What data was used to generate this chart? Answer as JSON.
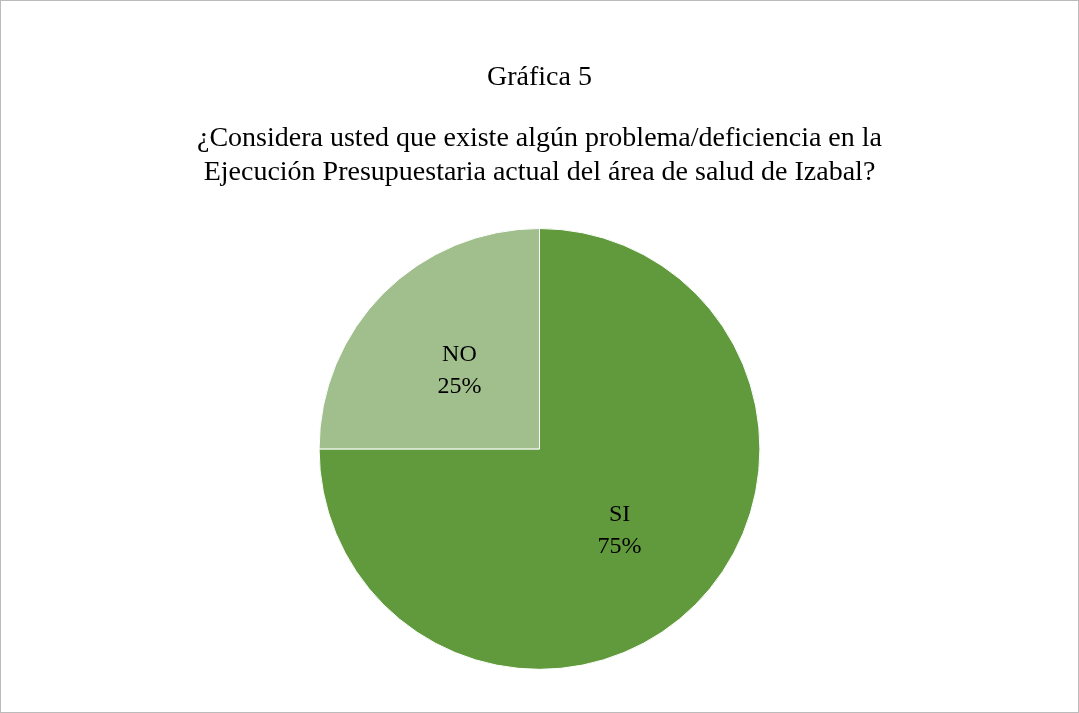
{
  "chart_data": {
    "type": "pie",
    "title": "Gráfica 5",
    "subtitle": "¿Considera usted que existe algún problema/deficiencia en la\nEjecución Presupuestaria actual del área de salud de Izabal?",
    "categories": [
      "SI",
      "NO"
    ],
    "values": [
      75,
      25
    ],
    "colors": [
      "#619a3c",
      "#a0bf8c"
    ],
    "value_labels": [
      "75%",
      "25%"
    ],
    "legend": false
  }
}
